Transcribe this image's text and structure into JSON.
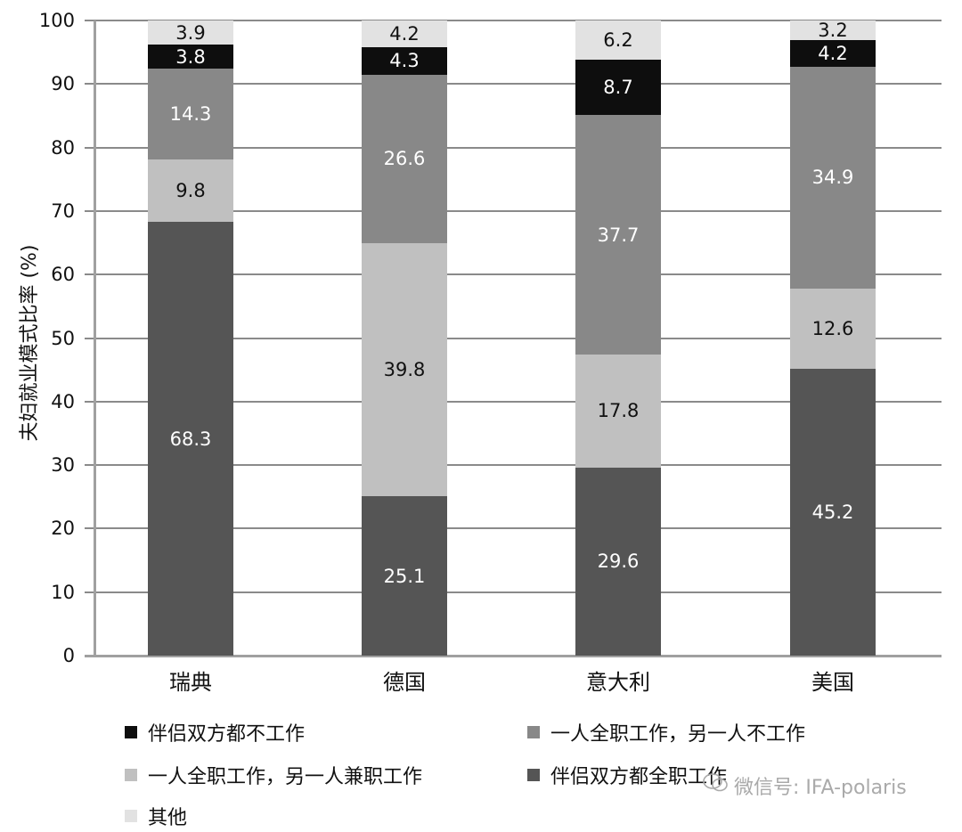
{
  "chart_data": {
    "type": "bar",
    "stacked": true,
    "title": "",
    "xlabel": "",
    "ylabel": "夫妇就业模式比率 (%)",
    "ylim": [
      0,
      100
    ],
    "yticks": [
      "0",
      "10",
      "20",
      "30",
      "40",
      "50",
      "60",
      "70",
      "80",
      "90",
      "100"
    ],
    "categories": [
      "瑞典",
      "德国",
      "意大利",
      "美国"
    ],
    "series": [
      {
        "name": "伴侣双方都全职工作",
        "color": "#555555",
        "values": [
          68.3,
          25.1,
          29.6,
          45.2
        ],
        "labels": [
          "68.3",
          "25.1",
          "29.6",
          "45.2"
        ]
      },
      {
        "name": "一人全职工作，另一人兼职工作",
        "color": "#c0c0c0",
        "values": [
          9.8,
          39.8,
          17.8,
          12.6
        ],
        "labels": [
          "9.8",
          "39.8",
          "17.8",
          "12.6"
        ]
      },
      {
        "name": "一人全职工作，另一人不工作",
        "color": "#888888",
        "values": [
          14.3,
          26.6,
          37.7,
          34.9
        ],
        "labels": [
          "14.3",
          "26.6",
          "37.7",
          "34.9"
        ]
      },
      {
        "name": "伴侣双方都不工作",
        "color": "#0e0e0e",
        "values": [
          3.8,
          4.3,
          8.7,
          4.2
        ],
        "labels": [
          "3.8",
          "4.3",
          "8.7",
          "4.2"
        ]
      },
      {
        "name": "其他",
        "color": "#e2e2e2",
        "values": [
          3.9,
          4.2,
          6.2,
          3.2
        ],
        "labels": [
          "3.9",
          "4.2",
          "6.2",
          "3.2"
        ]
      }
    ],
    "legend": [
      "伴侣双方都不工作",
      "一人全职工作，另一人不工作",
      "一人全职工作，另一人兼职工作",
      "伴侣双方都全职工作",
      "其他"
    ],
    "legend_position": "bottom",
    "grid": true
  },
  "watermark": "微信号: IFA-polaris"
}
